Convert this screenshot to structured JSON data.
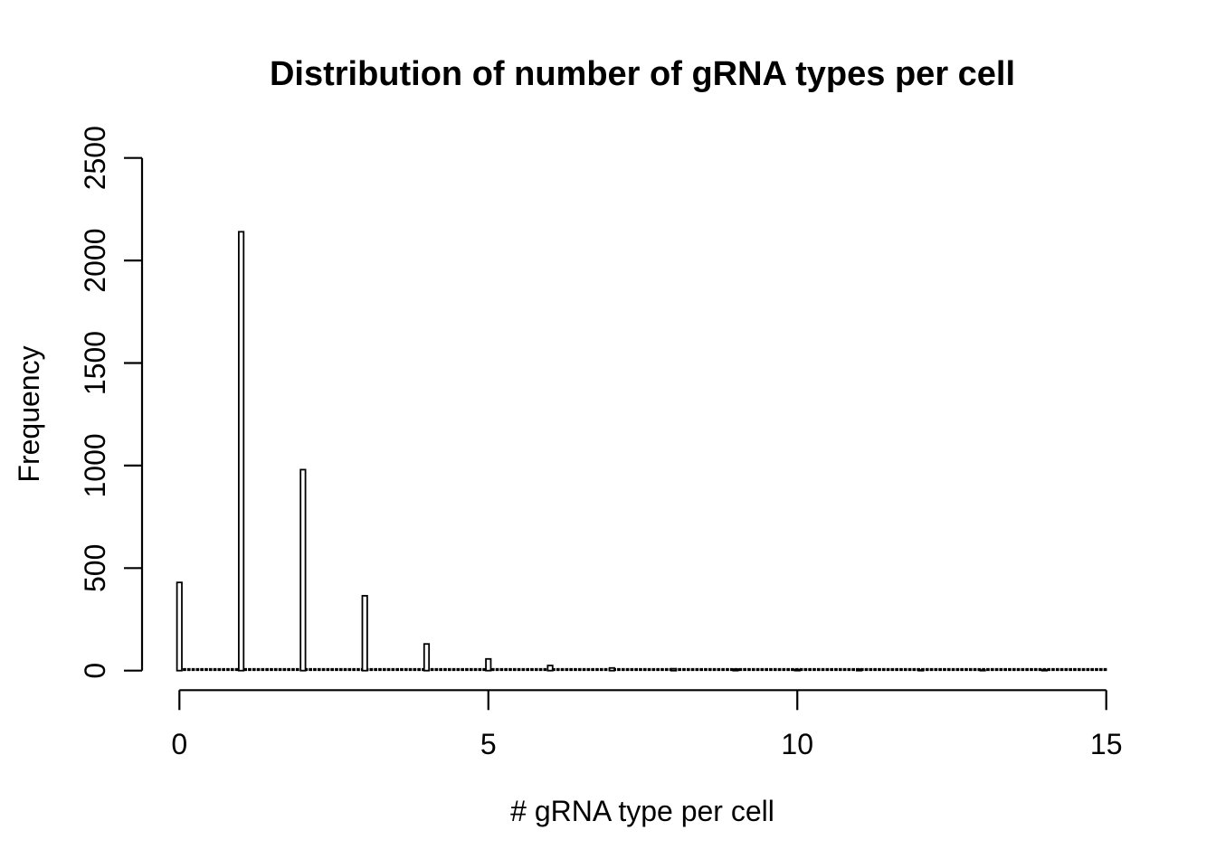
{
  "figure": {
    "background": "#ffffff",
    "foreground": "#000000"
  },
  "chart_data": {
    "type": "bar",
    "subtype": "histogram",
    "title": "Distribution of number of gRNA types per cell",
    "xlabel": "# gRNA type per cell",
    "ylabel": "Frequency",
    "xlim": [
      0,
      15
    ],
    "ylim": [
      0,
      2500
    ],
    "x_ticks": [
      0,
      5,
      10,
      15
    ],
    "y_ticks": [
      0,
      500,
      1000,
      1500,
      2000,
      2500
    ],
    "bin_width": 0.075,
    "grid": false,
    "legend": null,
    "bar_fill": "#ffffff",
    "bar_stroke": "#000000",
    "categories": [
      0,
      1,
      2,
      3,
      4,
      5,
      6,
      7,
      8,
      9,
      10,
      11,
      12,
      13,
      14
    ],
    "values": [
      430,
      2140,
      980,
      365,
      130,
      57,
      25,
      13,
      9,
      7,
      5,
      7,
      2,
      1,
      3
    ]
  }
}
